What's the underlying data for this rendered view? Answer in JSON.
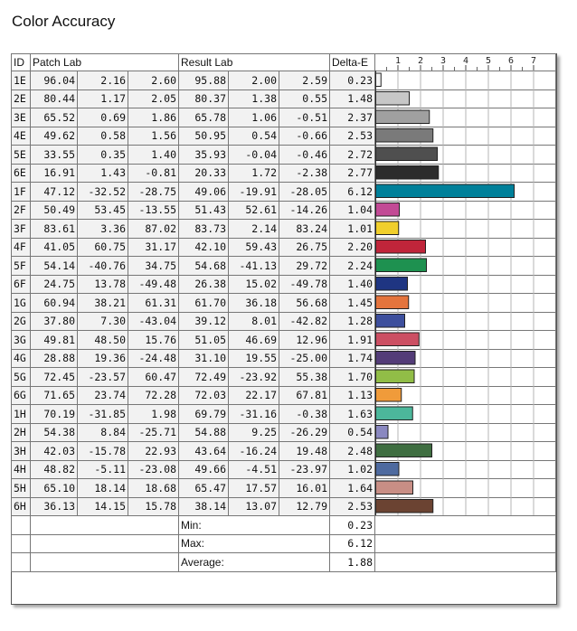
{
  "title": "Color Accuracy",
  "headers": {
    "id": "ID",
    "patch": "Patch Lab",
    "result": "Result Lab",
    "delta": "Delta-E"
  },
  "chart_data": {
    "type": "bar",
    "orientation": "horizontal",
    "x_ticks": [
      "1",
      "2",
      "3",
      "4",
      "5",
      "6",
      "7"
    ],
    "xlim": [
      0,
      7
    ],
    "grid": true,
    "categories": [
      "1E",
      "2E",
      "3E",
      "4E",
      "5E",
      "6E",
      "1F",
      "2F",
      "3F",
      "4F",
      "5F",
      "6F",
      "1G",
      "2G",
      "3G",
      "4G",
      "5G",
      "6G",
      "1H",
      "2H",
      "3H",
      "4H",
      "5H",
      "6H"
    ],
    "values": [
      0.23,
      1.48,
      2.37,
      2.53,
      2.72,
      2.77,
      6.12,
      1.04,
      1.01,
      2.2,
      2.24,
      1.4,
      1.45,
      1.28,
      1.91,
      1.74,
      1.7,
      1.13,
      1.63,
      0.54,
      2.48,
      1.02,
      1.64,
      2.53
    ],
    "colors": [
      "#f3f3f3",
      "#c7c7c7",
      "#a0a0a0",
      "#7a7a7a",
      "#4f4f4f",
      "#2c2c2c",
      "#00809a",
      "#c24a95",
      "#f0cf2c",
      "#c0253a",
      "#1e9150",
      "#1f3582",
      "#e4743d",
      "#3d4f9d",
      "#cc4f63",
      "#533c78",
      "#91bd47",
      "#f09b3a",
      "#4cb79b",
      "#8a88c0",
      "#3f6e41",
      "#4e6a9f",
      "#c88e85",
      "#6b4332"
    ]
  },
  "rows": [
    {
      "id": "1E",
      "p": [
        "96.04",
        "2.16",
        "2.60"
      ],
      "r": [
        "95.88",
        "2.00",
        "2.59"
      ],
      "de": "0.23"
    },
    {
      "id": "2E",
      "p": [
        "80.44",
        "1.17",
        "2.05"
      ],
      "r": [
        "80.37",
        "1.38",
        "0.55"
      ],
      "de": "1.48"
    },
    {
      "id": "3E",
      "p": [
        "65.52",
        "0.69",
        "1.86"
      ],
      "r": [
        "65.78",
        "1.06",
        "-0.51"
      ],
      "de": "2.37"
    },
    {
      "id": "4E",
      "p": [
        "49.62",
        "0.58",
        "1.56"
      ],
      "r": [
        "50.95",
        "0.54",
        "-0.66"
      ],
      "de": "2.53"
    },
    {
      "id": "5E",
      "p": [
        "33.55",
        "0.35",
        "1.40"
      ],
      "r": [
        "35.93",
        "-0.04",
        "-0.46"
      ],
      "de": "2.72"
    },
    {
      "id": "6E",
      "p": [
        "16.91",
        "1.43",
        "-0.81"
      ],
      "r": [
        "20.33",
        "1.72",
        "-2.38"
      ],
      "de": "2.77"
    },
    {
      "id": "1F",
      "p": [
        "47.12",
        "-32.52",
        "-28.75"
      ],
      "r": [
        "49.06",
        "-19.91",
        "-28.05"
      ],
      "de": "6.12"
    },
    {
      "id": "2F",
      "p": [
        "50.49",
        "53.45",
        "-13.55"
      ],
      "r": [
        "51.43",
        "52.61",
        "-14.26"
      ],
      "de": "1.04"
    },
    {
      "id": "3F",
      "p": [
        "83.61",
        "3.36",
        "87.02"
      ],
      "r": [
        "83.73",
        "2.14",
        "83.24"
      ],
      "de": "1.01"
    },
    {
      "id": "4F",
      "p": [
        "41.05",
        "60.75",
        "31.17"
      ],
      "r": [
        "42.10",
        "59.43",
        "26.75"
      ],
      "de": "2.20"
    },
    {
      "id": "5F",
      "p": [
        "54.14",
        "-40.76",
        "34.75"
      ],
      "r": [
        "54.68",
        "-41.13",
        "29.72"
      ],
      "de": "2.24"
    },
    {
      "id": "6F",
      "p": [
        "24.75",
        "13.78",
        "-49.48"
      ],
      "r": [
        "26.38",
        "15.02",
        "-49.78"
      ],
      "de": "1.40"
    },
    {
      "id": "1G",
      "p": [
        "60.94",
        "38.21",
        "61.31"
      ],
      "r": [
        "61.70",
        "36.18",
        "56.68"
      ],
      "de": "1.45"
    },
    {
      "id": "2G",
      "p": [
        "37.80",
        "7.30",
        "-43.04"
      ],
      "r": [
        "39.12",
        "8.01",
        "-42.82"
      ],
      "de": "1.28"
    },
    {
      "id": "3G",
      "p": [
        "49.81",
        "48.50",
        "15.76"
      ],
      "r": [
        "51.05",
        "46.69",
        "12.96"
      ],
      "de": "1.91"
    },
    {
      "id": "4G",
      "p": [
        "28.88",
        "19.36",
        "-24.48"
      ],
      "r": [
        "31.10",
        "19.55",
        "-25.00"
      ],
      "de": "1.74"
    },
    {
      "id": "5G",
      "p": [
        "72.45",
        "-23.57",
        "60.47"
      ],
      "r": [
        "72.49",
        "-23.92",
        "55.38"
      ],
      "de": "1.70"
    },
    {
      "id": "6G",
      "p": [
        "71.65",
        "23.74",
        "72.28"
      ],
      "r": [
        "72.03",
        "22.17",
        "67.81"
      ],
      "de": "1.13"
    },
    {
      "id": "1H",
      "p": [
        "70.19",
        "-31.85",
        "1.98"
      ],
      "r": [
        "69.79",
        "-31.16",
        "-0.38"
      ],
      "de": "1.63"
    },
    {
      "id": "2H",
      "p": [
        "54.38",
        "8.84",
        "-25.71"
      ],
      "r": [
        "54.88",
        "9.25",
        "-26.29"
      ],
      "de": "0.54"
    },
    {
      "id": "3H",
      "p": [
        "42.03",
        "-15.78",
        "22.93"
      ],
      "r": [
        "43.64",
        "-16.24",
        "19.48"
      ],
      "de": "2.48"
    },
    {
      "id": "4H",
      "p": [
        "48.82",
        "-5.11",
        "-23.08"
      ],
      "r": [
        "49.66",
        "-4.51",
        "-23.97"
      ],
      "de": "1.02"
    },
    {
      "id": "5H",
      "p": [
        "65.10",
        "18.14",
        "18.68"
      ],
      "r": [
        "65.47",
        "17.57",
        "16.01"
      ],
      "de": "1.64"
    },
    {
      "id": "6H",
      "p": [
        "36.13",
        "14.15",
        "15.78"
      ],
      "r": [
        "38.14",
        "13.07",
        "12.79"
      ],
      "de": "2.53"
    }
  ],
  "summary": [
    {
      "label": "Min:",
      "value": "0.23"
    },
    {
      "label": "Max:",
      "value": "6.12"
    },
    {
      "label": "Average:",
      "value": "1.88"
    }
  ]
}
